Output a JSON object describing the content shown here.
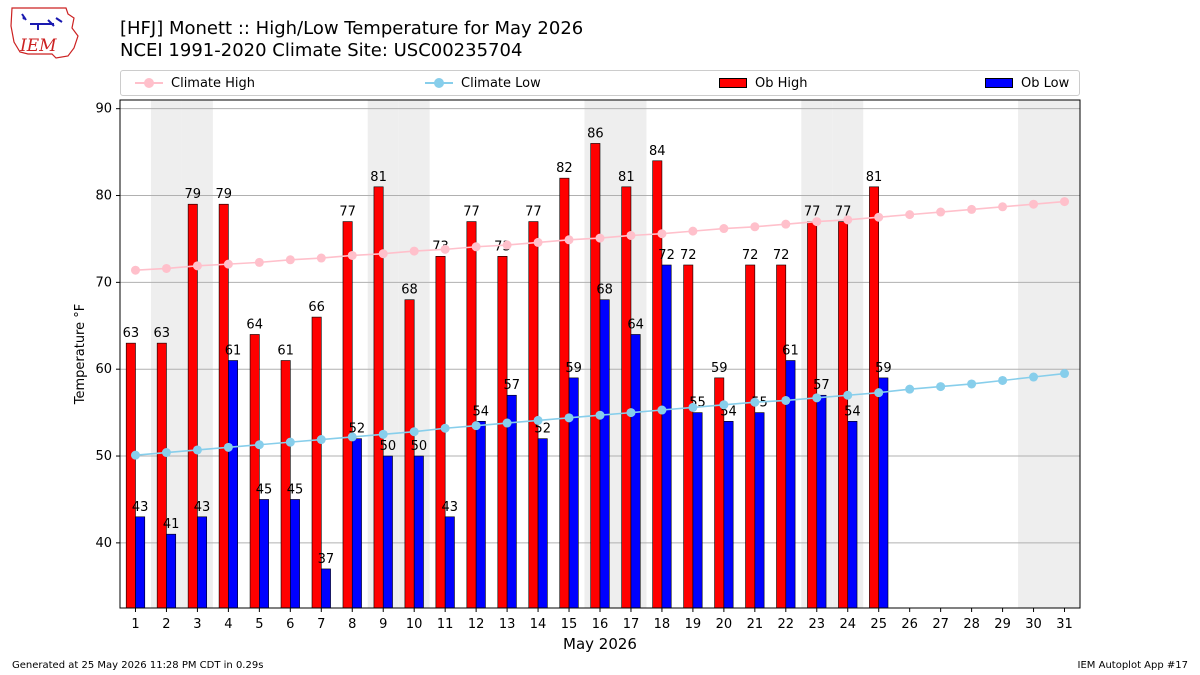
{
  "header": {
    "title_line1": "[HFJ] Monett :: High/Low Temperature for May 2026",
    "title_line2": "NCEI 1991-2020 Climate Site: USC00235704",
    "logo_text": "IEM"
  },
  "legend": {
    "climate_high": "Climate High",
    "climate_low": "Climate Low",
    "ob_high": "Ob High",
    "ob_low": "Ob Low"
  },
  "footer": {
    "left": "Generated at 25 May 2026 11:28 PM CDT in 0.29s",
    "right": "IEM Autoplot App #17"
  },
  "colors": {
    "ob_high": "#ff0000",
    "ob_low": "#0000ff",
    "climate_high": "#ffc0cb",
    "climate_low": "#87ceeb",
    "weekend_shade": "#eeeeee",
    "grid": "#b0b0b0",
    "logo": "#cc2222"
  },
  "chart_data": {
    "type": "bar",
    "xlabel": "May 2026",
    "ylabel": "Temperature °F",
    "ylim": [
      32.5,
      91
    ],
    "yticks": [
      40,
      50,
      60,
      70,
      80,
      90
    ],
    "grid": "horizontal",
    "legend_position": "top",
    "days": [
      1,
      2,
      3,
      4,
      5,
      6,
      7,
      8,
      9,
      10,
      11,
      12,
      13,
      14,
      15,
      16,
      17,
      18,
      19,
      20,
      21,
      22,
      23,
      24,
      25,
      26,
      27,
      28,
      29,
      30,
      31
    ],
    "weekend_days": [
      2,
      3,
      9,
      10,
      16,
      17,
      23,
      24,
      30,
      31
    ],
    "ob_high": [
      63,
      63,
      79,
      79,
      64,
      61,
      66,
      77,
      81,
      68,
      73,
      77,
      73,
      77,
      82,
      86,
      81,
      84,
      72,
      59,
      72,
      72,
      77,
      77,
      81
    ],
    "ob_low": [
      43,
      41,
      43,
      61,
      45,
      45,
      37,
      52,
      50,
      50,
      43,
      54,
      57,
      52,
      59,
      68,
      64,
      72,
      55,
      54,
      55,
      61,
      57,
      54,
      59
    ],
    "climate_high": [
      71.4,
      71.6,
      71.9,
      72.1,
      72.3,
      72.6,
      72.8,
      73.1,
      73.3,
      73.6,
      73.8,
      74.1,
      74.3,
      74.6,
      74.9,
      75.1,
      75.4,
      75.6,
      75.9,
      76.2,
      76.4,
      76.7,
      77.0,
      77.2,
      77.5,
      77.8,
      78.1,
      78.4,
      78.7,
      79.0,
      79.3
    ],
    "climate_low": [
      50.1,
      50.4,
      50.7,
      51.0,
      51.3,
      51.6,
      51.9,
      52.2,
      52.5,
      52.8,
      53.2,
      53.5,
      53.8,
      54.1,
      54.4,
      54.7,
      55.0,
      55.3,
      55.6,
      55.9,
      56.2,
      56.4,
      56.7,
      57.0,
      57.3,
      57.7,
      58.0,
      58.3,
      58.7,
      59.1,
      59.5
    ]
  }
}
